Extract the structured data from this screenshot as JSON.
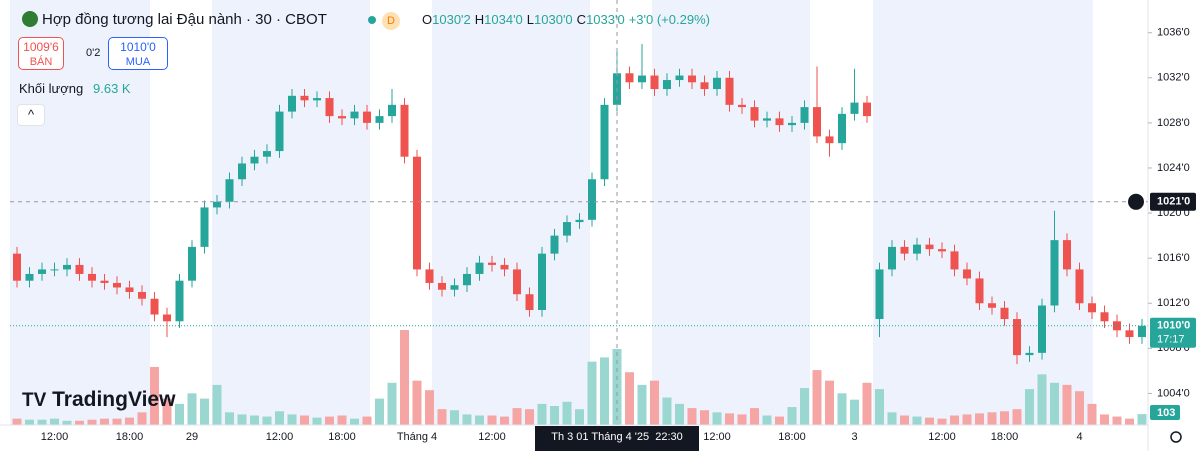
{
  "header": {
    "title": "Hợp đồng tương lai Đậu nành · 30 · CBOT",
    "badge": "D",
    "ohlc": [
      {
        "key": "O",
        "value": "1030'2"
      },
      {
        "key": "H",
        "value": "1034'0"
      },
      {
        "key": "L",
        "value": "1030'0"
      },
      {
        "key": "C",
        "value": "1033'0"
      }
    ],
    "change": "+3'0 (+0.29%)"
  },
  "trade": {
    "sell_price": "1009'6",
    "sell_label": "BÁN",
    "spread": "0'2",
    "buy_price": "1010'0",
    "buy_label": "MUA"
  },
  "volume_legend": {
    "label": "Khối lượng",
    "value": "9.63 K"
  },
  "logo": "TradingView",
  "chart_data": {
    "type": "candlestick",
    "categories": [
      null,
      null,
      null,
      "12:00",
      null,
      null,
      null,
      null,
      null,
      "18:00",
      null,
      null,
      null,
      null,
      "29",
      null,
      null,
      null,
      null,
      null,
      null,
      "12:00",
      null,
      null,
      null,
      null,
      "18:00",
      null,
      null,
      null,
      null,
      null,
      "Tháng 4",
      null,
      null,
      null,
      null,
      null,
      "12:00",
      null,
      null,
      null,
      null,
      null,
      null,
      null,
      null,
      null,
      "Th 3 01 Tháng 4 '25  22:30",
      null,
      null,
      null,
      null,
      null,
      null,
      null,
      "12:00",
      null,
      null,
      null,
      null,
      null,
      "18:00",
      null,
      null,
      null,
      null,
      "3",
      null,
      null,
      null,
      null,
      null,
      null,
      "12:00",
      null,
      null,
      null,
      null,
      "18:00",
      null,
      null,
      null,
      null,
      null,
      "4",
      null,
      null,
      null,
      null,
      null
    ],
    "open": [
      1016.4,
      1014.0,
      1014.6,
      1015.0,
      1015.0,
      1015.4,
      1014.6,
      1014.0,
      1013.8,
      1013.4,
      1013.0,
      1012.4,
      1011.0,
      1010.4,
      1014.0,
      1017.0,
      1020.5,
      1021.0,
      1023.0,
      1024.4,
      1025.0,
      1025.5,
      1029.0,
      1030.4,
      1030.0,
      1030.2,
      1028.6,
      1028.4,
      1029.0,
      1028.0,
      1028.6,
      1029.6,
      1025.0,
      1015.0,
      1013.8,
      1013.2,
      1013.6,
      1014.6,
      1015.6,
      1015.4,
      1015.0,
      1012.8,
      1011.4,
      1016.4,
      1018.0,
      1019.2,
      1019.4,
      1023.0,
      1029.6,
      1032.4,
      1031.6,
      1032.2,
      1031.0,
      1031.8,
      1032.2,
      1031.6,
      1031.0,
      1032.0,
      1029.6,
      1029.4,
      1028.2,
      1028.4,
      1027.8,
      1028.0,
      1029.4,
      1026.8,
      1026.2,
      1028.8,
      1029.8,
      1010.6,
      1015.0,
      1017.0,
      1016.4,
      1017.2,
      1016.8,
      1016.6,
      1015.0,
      1014.2,
      1012.0,
      1011.6,
      1010.6,
      1007.4,
      1007.6,
      1011.8,
      1017.6,
      1015.0,
      1012.0,
      1011.2,
      1010.4,
      1009.6,
      1009.0
    ],
    "high": [
      1017.0,
      1015.2,
      1015.6,
      1015.6,
      1016.0,
      1016.0,
      1015.2,
      1014.6,
      1014.4,
      1014.0,
      1013.6,
      1013.0,
      1011.6,
      1014.6,
      1017.6,
      1021.1,
      1021.6,
      1023.6,
      1025.0,
      1025.6,
      1026.1,
      1029.6,
      1031.0,
      1031.0,
      1030.8,
      1030.8,
      1029.2,
      1029.6,
      1029.6,
      1029.2,
      1031.0,
      1030.2,
      1025.6,
      1015.6,
      1014.4,
      1014.2,
      1015.2,
      1016.2,
      1016.2,
      1016.0,
      1015.6,
      1013.4,
      1017.0,
      1018.6,
      1019.8,
      1020.0,
      1023.6,
      1030.2,
      1034.5,
      1033.0,
      1035.0,
      1032.8,
      1032.4,
      1032.8,
      1032.8,
      1032.2,
      1032.6,
      1032.6,
      1030.2,
      1030.0,
      1029.0,
      1029.0,
      1028.6,
      1030.0,
      1033.0,
      1027.4,
      1029.4,
      1032.8,
      1030.4,
      1015.6,
      1017.6,
      1017.6,
      1017.8,
      1017.8,
      1017.4,
      1017.2,
      1015.6,
      1014.8,
      1012.6,
      1012.2,
      1011.2,
      1008.2,
      1012.4,
      1020.2,
      1018.2,
      1015.6,
      1012.6,
      1011.8,
      1011.0,
      1010.2,
      1010.6
    ],
    "low": [
      1013.4,
      1013.4,
      1014.0,
      1014.4,
      1014.4,
      1014.0,
      1013.4,
      1013.2,
      1012.8,
      1012.4,
      1011.8,
      1010.4,
      1009.0,
      1009.8,
      1013.4,
      1016.4,
      1019.9,
      1020.4,
      1022.4,
      1023.8,
      1024.4,
      1024.9,
      1028.4,
      1029.4,
      1029.4,
      1028.0,
      1027.8,
      1027.8,
      1027.4,
      1027.4,
      1028.0,
      1024.4,
      1014.4,
      1013.2,
      1012.6,
      1012.6,
      1013.0,
      1014.0,
      1014.8,
      1014.4,
      1012.2,
      1010.8,
      1010.8,
      1015.8,
      1017.4,
      1018.6,
      1018.8,
      1022.4,
      1029.0,
      1031.0,
      1031.0,
      1030.4,
      1030.4,
      1031.2,
      1031.0,
      1030.4,
      1030.4,
      1029.0,
      1028.8,
      1027.6,
      1027.6,
      1027.2,
      1027.2,
      1027.4,
      1026.2,
      1025.0,
      1025.6,
      1028.2,
      1028.0,
      1009.0,
      1014.4,
      1015.8,
      1015.8,
      1016.2,
      1016.0,
      1014.4,
      1013.6,
      1011.4,
      1011.0,
      1010.0,
      1006.6,
      1006.8,
      1007.0,
      1011.2,
      1014.4,
      1011.4,
      1010.6,
      1009.8,
      1009.0,
      1008.4,
      1008.4
    ],
    "close": [
      1014.0,
      1014.6,
      1015.0,
      1015.0,
      1015.4,
      1014.6,
      1014.0,
      1013.8,
      1013.4,
      1013.0,
      1012.4,
      1011.0,
      1010.4,
      1014.0,
      1017.0,
      1020.5,
      1021.0,
      1023.0,
      1024.4,
      1025.0,
      1025.5,
      1029.0,
      1030.4,
      1030.0,
      1030.2,
      1028.6,
      1028.4,
      1029.0,
      1028.0,
      1028.6,
      1029.6,
      1025.0,
      1015.0,
      1013.8,
      1013.2,
      1013.6,
      1014.6,
      1015.6,
      1015.4,
      1015.0,
      1012.8,
      1011.4,
      1016.4,
      1018.0,
      1019.2,
      1019.4,
      1023.0,
      1029.6,
      1032.4,
      1031.6,
      1032.2,
      1031.0,
      1031.8,
      1032.2,
      1031.6,
      1031.0,
      1032.0,
      1029.6,
      1029.4,
      1028.2,
      1028.4,
      1027.8,
      1028.0,
      1029.4,
      1026.8,
      1026.2,
      1028.8,
      1029.8,
      1028.6,
      1015.0,
      1017.0,
      1016.4,
      1017.2,
      1016.8,
      1016.6,
      1015.0,
      1014.2,
      1012.0,
      1011.6,
      1010.6,
      1007.4,
      1007.6,
      1011.8,
      1017.6,
      1015.0,
      1012.0,
      1011.2,
      1010.4,
      1009.6,
      1009.0,
      1010.0
    ],
    "volume": [
      60,
      50,
      50,
      60,
      40,
      40,
      50,
      60,
      60,
      70,
      120,
      550,
      250,
      200,
      300,
      250,
      380,
      120,
      100,
      90,
      80,
      130,
      100,
      90,
      70,
      80,
      90,
      60,
      80,
      250,
      400,
      900,
      420,
      330,
      150,
      140,
      100,
      90,
      90,
      80,
      160,
      150,
      200,
      180,
      220,
      150,
      600,
      640,
      720,
      500,
      380,
      420,
      260,
      200,
      160,
      140,
      120,
      110,
      100,
      160,
      90,
      80,
      170,
      350,
      520,
      420,
      300,
      240,
      400,
      340,
      120,
      90,
      80,
      70,
      60,
      90,
      100,
      110,
      120,
      130,
      150,
      340,
      480,
      400,
      380,
      320,
      200,
      100,
      80,
      60,
      103
    ],
    "up_color": "#26a69a",
    "down_color": "#ef5350",
    "up_volume_color": "#9ad7d0",
    "down_volume_color": "#f5a5a4",
    "ylim": [
      1001.2,
      1038.9
    ],
    "yticks": [
      {
        "value": 1004,
        "label": "1004'0"
      },
      {
        "value": 1008,
        "label": "1008'0"
      },
      {
        "value": 1012,
        "label": "1012'0"
      },
      {
        "value": 1016,
        "label": "1016'0"
      },
      {
        "value": 1020,
        "label": "1020'0"
      },
      {
        "value": 1024,
        "label": "1024'0"
      },
      {
        "value": 1028,
        "label": "1028'0"
      },
      {
        "value": 1032,
        "label": "1032'0"
      },
      {
        "value": 1036,
        "label": "1036'0"
      }
    ],
    "crosshair": {
      "x": 48,
      "price": {
        "value": 1021,
        "label": "1021'0"
      }
    },
    "last_price": {
      "value": 1010,
      "label": "1010'0",
      "countdown": "17:17"
    }
  }
}
